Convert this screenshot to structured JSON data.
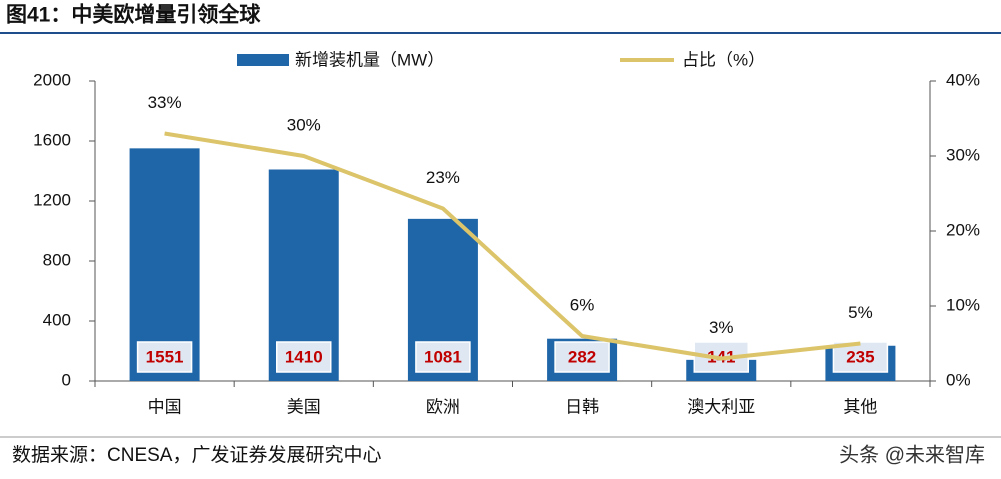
{
  "chart_data": {
    "type": "bar",
    "title": "图41：中美欧增量引领全球",
    "source": "数据来源：CNESA，广发证券发展研究中心",
    "watermark": "头条 @未来智库",
    "categories": [
      "中国",
      "美国",
      "欧洲",
      "日韩",
      "澳大利亚",
      "其他"
    ],
    "series": [
      {
        "name": "新增装机量（MW）",
        "type": "bar",
        "color": "#1f66a8",
        "values": [
          1551,
          1410,
          1081,
          282,
          141,
          235
        ]
      },
      {
        "name": "占比（%）",
        "type": "line",
        "axis": "y2",
        "color": "#dcc46a",
        "values": [
          33,
          30,
          23,
          6,
          3,
          5
        ],
        "value_labels": [
          "33%",
          "30%",
          "23%",
          "6%",
          "3%",
          "5%"
        ]
      }
    ],
    "ylim": [
      0,
      2000
    ],
    "yticks": [
      0,
      400,
      800,
      1200,
      1600,
      2000
    ],
    "y2lim": [
      0,
      40
    ],
    "y2ticks": [
      {
        "value": 0,
        "label": "0%"
      },
      {
        "value": 10,
        "label": "10%"
      },
      {
        "value": 20,
        "label": "20%"
      },
      {
        "value": 30,
        "label": "30%"
      },
      {
        "value": 40,
        "label": "40%"
      }
    ],
    "legend": "top"
  }
}
